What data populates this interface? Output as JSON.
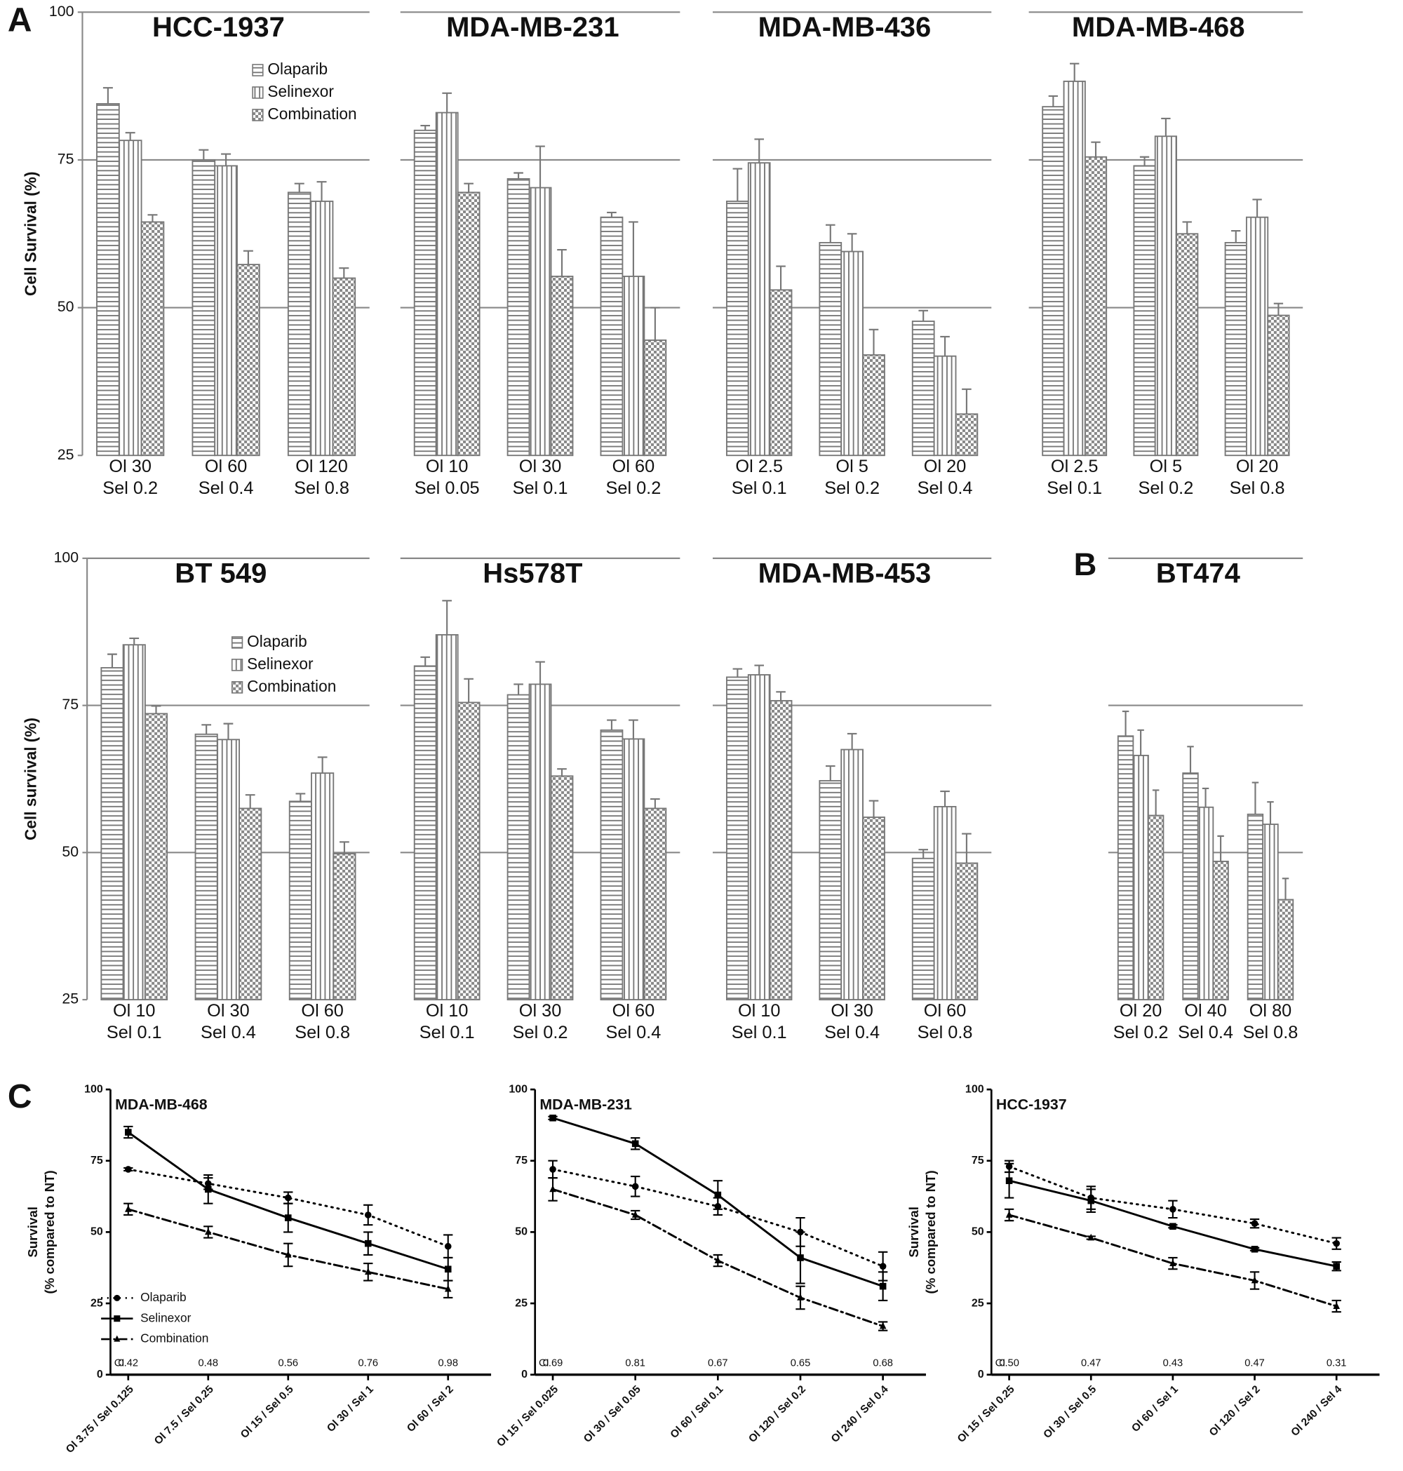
{
  "panel_labels": [
    "A",
    "B",
    "C"
  ],
  "chart_data": [
    {
      "type": "bar",
      "title": "HCC-1937",
      "ylabel": "Cell Survival (%)",
      "tick_labels": true,
      "grid": true,
      "legend": true,
      "ylim": [
        25,
        100
      ],
      "yticks": [
        25,
        50,
        75,
        100
      ],
      "categories": [
        [
          "Ol 30",
          "Sel 0.2"
        ],
        [
          "Ol 60",
          "Sel 0.4"
        ],
        [
          "Ol 120",
          "Sel 0.8"
        ]
      ],
      "series": [
        {
          "name": "Olaparib",
          "pattern": "horizontal",
          "values": [
            84.5,
            75,
            69.5
          ],
          "errors": [
            2.7,
            1.7,
            1.5
          ]
        },
        {
          "name": "Selinexor",
          "pattern": "vertical",
          "values": [
            78.3,
            74,
            68
          ],
          "errors": [
            1.3,
            2,
            3.3
          ]
        },
        {
          "name": "Combination",
          "pattern": "checker",
          "values": [
            64.5,
            57.3,
            55
          ],
          "errors": [
            1.2,
            2.3,
            1.7
          ]
        }
      ]
    },
    {
      "type": "bar",
      "title": "MDA-MB-231",
      "tick_labels": false,
      "grid": true,
      "legend": false,
      "ylim": [
        25,
        100
      ],
      "yticks": [
        25,
        50,
        75,
        100
      ],
      "categories": [
        [
          "Ol 10",
          "Sel 0.05"
        ],
        [
          "Ol 30",
          "Sel 0.1"
        ],
        [
          "Ol 60",
          "Sel 0.2"
        ]
      ],
      "series": [
        {
          "pattern": "horizontal",
          "values": [
            80,
            71.8,
            65.3
          ],
          "errors": [
            0.8,
            1,
            0.8
          ]
        },
        {
          "pattern": "vertical",
          "values": [
            83,
            70.3,
            55.3
          ],
          "errors": [
            3.3,
            7,
            9.2
          ]
        },
        {
          "pattern": "checker",
          "values": [
            69.5,
            55.3,
            44.5
          ],
          "errors": [
            1.5,
            4.5,
            5.5
          ]
        }
      ]
    },
    {
      "type": "bar",
      "title": "MDA-MB-436",
      "tick_labels": false,
      "grid": true,
      "legend": false,
      "ylim": [
        25,
        100
      ],
      "yticks": [
        25,
        50,
        75,
        100
      ],
      "categories": [
        [
          "Ol 2.5",
          "Sel 0.1"
        ],
        [
          "Ol 5",
          "Sel 0.2"
        ],
        [
          "Ol 20",
          "Sel 0.4"
        ]
      ],
      "series": [
        {
          "pattern": "horizontal",
          "values": [
            68,
            61,
            47.7
          ],
          "errors": [
            5.5,
            3,
            1.8
          ]
        },
        {
          "pattern": "vertical",
          "values": [
            74.5,
            59.5,
            41.8
          ],
          "errors": [
            4,
            3,
            3.3
          ]
        },
        {
          "pattern": "checker",
          "values": [
            53,
            42,
            32
          ],
          "errors": [
            4,
            4.3,
            4.2
          ]
        }
      ]
    },
    {
      "type": "bar",
      "title": "MDA-MB-468",
      "tick_labels": false,
      "grid": true,
      "legend": false,
      "ylim": [
        25,
        100
      ],
      "yticks": [
        25,
        50,
        75,
        100
      ],
      "categories": [
        [
          "Ol 2.5",
          "Sel 0.1"
        ],
        [
          "Ol 5",
          "Sel 0.2"
        ],
        [
          "Ol 20",
          "Sel 0.8"
        ]
      ],
      "series": [
        {
          "pattern": "horizontal",
          "values": [
            84,
            74,
            61
          ],
          "errors": [
            1.8,
            1.5,
            2
          ]
        },
        {
          "pattern": "vertical",
          "values": [
            88.3,
            79,
            65.3
          ],
          "errors": [
            3,
            3,
            3
          ]
        },
        {
          "pattern": "checker",
          "values": [
            75.5,
            62.5,
            48.7
          ],
          "errors": [
            2.5,
            2,
            2
          ]
        }
      ]
    },
    {
      "type": "bar",
      "title": "BT 549",
      "ylabel": "Cell survival (%)",
      "tick_labels": true,
      "grid": true,
      "legend": true,
      "ylim": [
        25,
        100
      ],
      "yticks": [
        25,
        50,
        75,
        100
      ],
      "categories": [
        [
          "Ol 10",
          "Sel 0.1"
        ],
        [
          "Ol 30",
          "Sel 0.4"
        ],
        [
          "Ol 60",
          "Sel 0.8"
        ]
      ],
      "series": [
        {
          "name": "Olaparib",
          "pattern": "horizontal",
          "values": [
            81.4,
            70.1,
            58.7
          ],
          "errors": [
            2.3,
            1.6,
            1.3
          ]
        },
        {
          "name": "Selinexor",
          "pattern": "vertical",
          "values": [
            85.3,
            69.2,
            63.5
          ],
          "errors": [
            1.1,
            2.7,
            2.7
          ]
        },
        {
          "name": "Combination",
          "pattern": "checker",
          "values": [
            73.6,
            57.5,
            49.8
          ],
          "errors": [
            1.3,
            2.3,
            2
          ]
        }
      ]
    },
    {
      "type": "bar",
      "title": "Hs578T",
      "tick_labels": false,
      "grid": true,
      "legend": false,
      "ylim": [
        25,
        100
      ],
      "yticks": [
        25,
        50,
        75,
        100
      ],
      "categories": [
        [
          "Ol 10",
          "Sel 0.1"
        ],
        [
          "Ol 30",
          "Sel 0.2"
        ],
        [
          "Ol 60",
          "Sel 0.4"
        ]
      ],
      "series": [
        {
          "pattern": "horizontal",
          "values": [
            81.7,
            76.8,
            70.8
          ],
          "errors": [
            1.5,
            1.8,
            1.7
          ]
        },
        {
          "pattern": "vertical",
          "values": [
            87,
            78.6,
            69.3
          ],
          "errors": [
            5.8,
            3.8,
            3.2
          ]
        },
        {
          "pattern": "checker",
          "values": [
            75.5,
            63,
            57.5
          ],
          "errors": [
            4,
            1.2,
            1.6
          ]
        }
      ]
    },
    {
      "type": "bar",
      "title": "MDA-MB-453",
      "tick_labels": false,
      "grid": true,
      "legend": false,
      "ylim": [
        25,
        100
      ],
      "yticks": [
        25,
        50,
        75,
        100
      ],
      "categories": [
        [
          "Ol 10",
          "Sel 0.1"
        ],
        [
          "Ol 30",
          "Sel 0.4"
        ],
        [
          "Ol 60",
          "Sel 0.8"
        ]
      ],
      "series": [
        {
          "pattern": "horizontal",
          "values": [
            79.8,
            62.2,
            49
          ],
          "errors": [
            1.4,
            2.5,
            1.5
          ]
        },
        {
          "pattern": "vertical",
          "values": [
            80.2,
            67.5,
            57.8
          ],
          "errors": [
            1.6,
            2.7,
            2.6
          ]
        },
        {
          "pattern": "checker",
          "values": [
            75.8,
            56,
            48.2
          ],
          "errors": [
            1.5,
            2.8,
            5
          ]
        }
      ]
    },
    {
      "type": "bar",
      "title": "BT474",
      "tick_labels": false,
      "grid": true,
      "legend": false,
      "ylim": [
        25,
        100
      ],
      "yticks": [
        25,
        50,
        75,
        100
      ],
      "categories": [
        [
          "Ol 20",
          "Sel 0.2"
        ],
        [
          "Ol 40",
          "Sel 0.4"
        ],
        [
          "Ol 80",
          "Sel 0.8"
        ]
      ],
      "series": [
        {
          "pattern": "horizontal",
          "values": [
            69.8,
            63.5,
            56.5
          ],
          "errors": [
            4.2,
            4.5,
            5.4
          ]
        },
        {
          "pattern": "vertical",
          "values": [
            66.5,
            57.7,
            54.8
          ],
          "errors": [
            4.3,
            3.2,
            3.8
          ]
        },
        {
          "pattern": "checker",
          "values": [
            56.3,
            48.5,
            42
          ],
          "errors": [
            4.3,
            4.3,
            3.6
          ]
        }
      ]
    },
    {
      "type": "line",
      "title": "MDA-MB-468",
      "ylabel": [
        "Survival",
        "(% compared to NT)"
      ],
      "legend": true,
      "ylim": [
        0,
        100
      ],
      "yticks": [
        0,
        25,
        50,
        75,
        100
      ],
      "categories": [
        "Ol 3.75 / Sel 0.125",
        "Ol 7.5 / Sel 0.25",
        "Ol 15 / Sel 0.5",
        "Ol 30 / Sel 1",
        "Ol 60 / Sel 2"
      ],
      "ci_label": "CI",
      "ci": [
        0.42,
        0.48,
        0.56,
        0.76,
        0.98
      ],
      "series": [
        {
          "name": "Olaparib",
          "line_style": "dotted",
          "marker": "circle",
          "color": "#000000",
          "values": [
            72,
            67,
            62,
            56,
            45
          ],
          "errors": [
            0.5,
            2,
            2,
            3.5,
            4
          ]
        },
        {
          "name": "Selinexor",
          "line_style": "solid",
          "marker": "square",
          "color": "#000000",
          "values": [
            85,
            65,
            55,
            46,
            37
          ],
          "errors": [
            2,
            5,
            5,
            4,
            4
          ]
        },
        {
          "name": "Combination",
          "line_style": "dashdot",
          "marker": "triangle",
          "color": "#000000",
          "values": [
            58,
            50,
            42,
            36,
            30
          ],
          "errors": [
            2,
            2,
            4,
            3,
            3
          ]
        }
      ]
    },
    {
      "type": "line",
      "title": "MDA-MB-231",
      "legend": false,
      "ylim": [
        0,
        100
      ],
      "yticks": [
        0,
        25,
        50,
        75,
        100
      ],
      "categories": [
        "Ol 15 / Sel 0.025",
        "Ol 30 / Sel 0.05",
        "Ol 60 / Sel 0.1",
        "Ol 120 / Sel 0.2",
        "Ol 240 / Sel 0.4"
      ],
      "ci_label": "CI",
      "ci": [
        0.69,
        0.81,
        0.67,
        0.65,
        0.68
      ],
      "series": [
        {
          "line_style": "dotted",
          "marker": "circle",
          "color": "#000000",
          "values": [
            72,
            66,
            59,
            50,
            38
          ],
          "errors": [
            3,
            3.5,
            3,
            5,
            5
          ]
        },
        {
          "line_style": "solid",
          "marker": "square",
          "color": "#000000",
          "values": [
            90,
            81,
            63,
            41,
            31
          ],
          "errors": [
            0.5,
            2,
            5,
            9,
            5
          ]
        },
        {
          "line_style": "dashdot",
          "marker": "triangle",
          "color": "#000000",
          "values": [
            65,
            56,
            40,
            27,
            17
          ],
          "errors": [
            4,
            1.5,
            2,
            4,
            1.5
          ]
        }
      ]
    },
    {
      "type": "line",
      "title": "HCC-1937",
      "ylabel": [
        "Survival",
        "(% compared to NT)"
      ],
      "legend": false,
      "ylim": [
        0,
        100
      ],
      "yticks": [
        0,
        25,
        50,
        75,
        100
      ],
      "categories": [
        "Ol 15 / Sel 0.25",
        "Ol 30 / Sel 0.5",
        "Ol 60 / Sel 1",
        "Ol 120 / Sel 2",
        "Ol 240 / Sel 4"
      ],
      "ci_label": "CI",
      "ci": [
        0.5,
        0.47,
        0.43,
        0.47,
        0.31
      ],
      "ci_labels": [
        "0.50",
        "0.47",
        "0.43",
        "0.47",
        "0.31"
      ],
      "series": [
        {
          "line_style": "dotted",
          "marker": "circle",
          "color": "#000000",
          "values": [
            73,
            62,
            58,
            53,
            46
          ],
          "errors": [
            2,
            4,
            3,
            1.5,
            2
          ]
        },
        {
          "line_style": "solid",
          "marker": "square",
          "color": "#000000",
          "values": [
            68,
            61,
            52,
            44,
            38
          ],
          "errors": [
            6,
            4,
            0.5,
            0.5,
            1.5
          ]
        },
        {
          "line_style": "dashdot",
          "marker": "triangle",
          "color": "#000000",
          "values": [
            56,
            48,
            39,
            33,
            24
          ],
          "errors": [
            2,
            0.5,
            2,
            3,
            2
          ]
        }
      ]
    }
  ]
}
